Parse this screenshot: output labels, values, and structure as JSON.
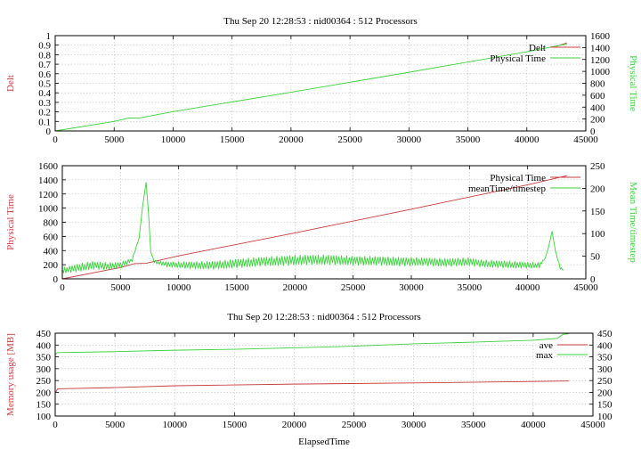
{
  "colors": {
    "red": "#c83c3c",
    "green": "#3cd23c",
    "axis": "#000000",
    "grid": "#bdbdbd"
  },
  "chart_data": [
    {
      "type": "line",
      "title": "Thu Sep 20 12:28:53 : nid00364 : 512 Processors",
      "ylabel": "Delt",
      "y2label": "Physical Time",
      "xlim": [
        0,
        45000
      ],
      "ylim": [
        0,
        1
      ],
      "y2lim": [
        0,
        1600
      ],
      "x_ticks": [
        0,
        5000,
        10000,
        15000,
        20000,
        25000,
        30000,
        35000,
        40000,
        45000
      ],
      "y_ticks": [
        0,
        0.1,
        0.2,
        0.3,
        0.4,
        0.5,
        0.6,
        0.7,
        0.8,
        0.9,
        1
      ],
      "y2_ticks": [
        0,
        200,
        400,
        600,
        800,
        1000,
        1200,
        1400,
        1600
      ],
      "grid": true,
      "legend_position": "top-right",
      "series": [
        {
          "name": "Delt",
          "color": "#c83c3c",
          "axis": "y2",
          "x": [
            42500,
            43400
          ],
          "y": [
            1420,
            1480
          ]
        },
        {
          "name": "Physical Time",
          "color": "#3cd23c",
          "axis": "y2",
          "x": [
            0,
            5000,
            6200,
            7200,
            10000,
            20000,
            30000,
            40000,
            43400
          ],
          "y": [
            0,
            160,
            215,
            220,
            325,
            650,
            985,
            1330,
            1460
          ]
        }
      ]
    },
    {
      "type": "line",
      "title": "",
      "ylabel": "Physical Time",
      "y2label": "Mean Time/timestep",
      "xlim": [
        0,
        45000
      ],
      "ylim": [
        0,
        1600
      ],
      "y2lim": [
        0,
        250
      ],
      "x_ticks": [
        0,
        5000,
        10000,
        15000,
        20000,
        25000,
        30000,
        35000,
        40000,
        45000
      ],
      "y_ticks": [
        0,
        200,
        400,
        600,
        800,
        1000,
        1200,
        1400,
        1600
      ],
      "y2_ticks": [
        0,
        50,
        100,
        150,
        200,
        250
      ],
      "grid": true,
      "legend_position": "top-right",
      "series": [
        {
          "name": "Physical Time",
          "color": "#c83c3c",
          "axis": "y",
          "x": [
            0,
            5000,
            6200,
            7200,
            10000,
            20000,
            30000,
            40000,
            43400
          ],
          "y": [
            0,
            160,
            215,
            220,
            325,
            650,
            985,
            1330,
            1460
          ]
        },
        {
          "name": "meanTime/timestep",
          "color": "#3cd23c",
          "axis": "y2",
          "x": [
            0,
            400,
            1500,
            2600,
            3800,
            5000,
            6000,
            6600,
            6900,
            7200,
            7400,
            7600,
            7900,
            9000,
            11000,
            13000,
            15000,
            17000,
            19000,
            21000,
            23000,
            25000,
            27000,
            29000,
            31000,
            33000,
            35000,
            36000,
            38000,
            40000,
            41000,
            41500,
            41800,
            42100,
            42400,
            42800,
            43100
          ],
          "y": [
            18,
            20,
            25,
            30,
            28,
            30,
            42,
            90,
            160,
            213,
            150,
            60,
            38,
            32,
            30,
            30,
            34,
            38,
            40,
            42,
            42,
            40,
            40,
            38,
            38,
            36,
            38,
            34,
            32,
            30,
            30,
            45,
            70,
            105,
            60,
            24,
            20
          ],
          "amp": [
            6,
            7,
            9,
            9,
            8,
            7,
            4,
            0,
            0,
            0,
            0,
            0,
            3,
            6,
            8,
            9,
            10,
            10,
            11,
            11,
            11,
            10,
            10,
            10,
            9,
            9,
            9,
            8,
            8,
            7,
            6,
            0,
            0,
            0,
            0,
            3,
            2
          ]
        }
      ]
    },
    {
      "type": "line",
      "title": "Thu Sep 20 12:28:53 : nid00364 : 512 Processors",
      "xlabel": "ElapsedTime",
      "ylabel": "Memory usage [MB]",
      "xlim": [
        0,
        45000
      ],
      "ylim": [
        100,
        450
      ],
      "y2lim": [
        100,
        450
      ],
      "x_ticks": [
        0,
        5000,
        10000,
        15000,
        20000,
        25000,
        30000,
        35000,
        40000,
        45000
      ],
      "y_ticks": [
        100,
        150,
        200,
        250,
        300,
        350,
        400,
        450
      ],
      "y2_ticks": [
        100,
        150,
        200,
        250,
        300,
        350,
        400,
        450
      ],
      "grid": true,
      "legend_position": "top-right",
      "series": [
        {
          "name": "ave",
          "color": "#c83c3c",
          "axis": "y",
          "x": [
            0,
            200,
            5000,
            10000,
            20000,
            30000,
            40000,
            43000
          ],
          "y": [
            195,
            215,
            220,
            228,
            235,
            240,
            246,
            248
          ]
        },
        {
          "name": "max",
          "color": "#3cd23c",
          "axis": "y",
          "x": [
            0,
            200,
            5000,
            10000,
            15000,
            20000,
            25000,
            30000,
            35000,
            40000,
            42000,
            42500,
            43000
          ],
          "y": [
            360,
            368,
            372,
            378,
            382,
            388,
            395,
            405,
            412,
            420,
            428,
            445,
            448
          ]
        }
      ]
    }
  ]
}
